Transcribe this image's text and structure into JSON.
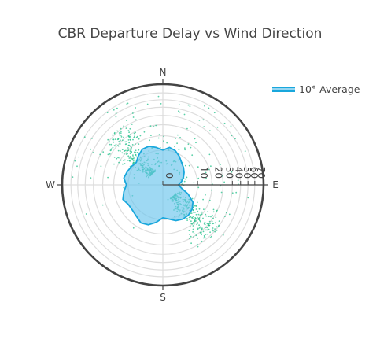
{
  "title": "CBR Departure Delay vs Wind Direction",
  "legend": {
    "label": "10° Average"
  },
  "chart_data": {
    "type": "polar-scatter",
    "title": "CBR Departure Delay vs Wind Direction",
    "radial_axis": {
      "tick_values": [
        0,
        10,
        20,
        30,
        40,
        50,
        60,
        70
      ],
      "tick_labels": [
        "0",
        "10",
        "20",
        "30",
        "40",
        "50",
        "60",
        "70"
      ],
      "scale": "sqrt",
      "range": [
        0,
        84
      ],
      "grid": true
    },
    "angular_axis": {
      "direction": "clockwise",
      "rotation_deg": 90,
      "labels": [
        "N",
        "E",
        "S",
        "W"
      ],
      "label_angles": [
        0,
        90,
        180,
        270
      ]
    },
    "colors": {
      "scatter": "#22c08a",
      "average_line": "#19a7dc",
      "average_fill": "rgba(106,196,236,0.65)",
      "outer_ring": "#444444",
      "grid": "#dddddd"
    },
    "series": [
      {
        "name": "10° Average",
        "kind": "line-fill",
        "theta": [
          0,
          10,
          20,
          30,
          40,
          50,
          60,
          70,
          80,
          90,
          100,
          110,
          120,
          130,
          140,
          150,
          160,
          170,
          180,
          190,
          200,
          210,
          220,
          230,
          240,
          250,
          260,
          270,
          280,
          290,
          300,
          310,
          320,
          330,
          340,
          350
        ],
        "r": [
          10,
          12,
          11,
          9,
          7,
          6,
          5,
          4,
          3,
          2,
          3,
          6,
          10,
          12,
          13,
          13,
          12,
          10,
          9,
          12,
          15,
          16,
          14,
          13,
          13,
          15,
          13,
          11,
          13,
          12,
          11,
          10,
          12,
          14,
          14,
          12
        ]
      },
      {
        "kind": "scatter",
        "clusters": [
          {
            "theta_center": 135,
            "theta_spread": 28,
            "r_min": 2,
            "r_max": 42,
            "count": 280
          },
          {
            "theta_center": 315,
            "theta_spread": 26,
            "r_min": 2,
            "r_max": 42,
            "count": 250
          },
          {
            "theta_center": 0,
            "theta_spread": 180,
            "r_min": 3,
            "r_max": 70,
            "count": 180
          }
        ]
      }
    ]
  }
}
